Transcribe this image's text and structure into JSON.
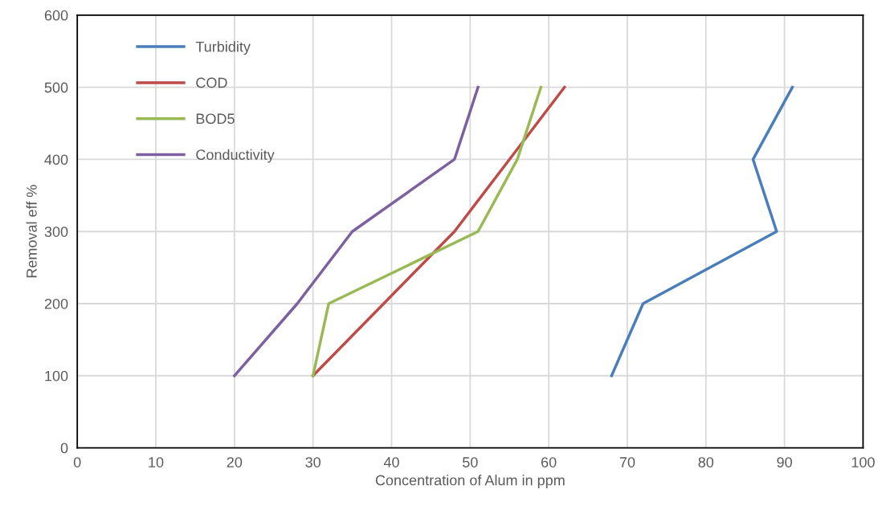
{
  "chart_data": {
    "type": "line",
    "xlabel": "Concentration of Alum in ppm",
    "ylabel": "Removal eff %",
    "xlim": [
      0,
      100
    ],
    "xticks": [
      0,
      10,
      20,
      30,
      40,
      50,
      60,
      70,
      80,
      90,
      100
    ],
    "ylim": [
      0,
      600
    ],
    "yticks": [
      0,
      100,
      200,
      300,
      400,
      500,
      600
    ],
    "grid": true,
    "legend": "top left",
    "marker": "none",
    "line_style": "solid",
    "series": [
      {
        "name": "Turbidity",
        "color": "#4a7ebb",
        "x": [
          68,
          72,
          89,
          86,
          91
        ],
        "values": [
          100,
          200,
          300,
          400,
          500
        ]
      },
      {
        "name": "COD",
        "color": "#be4b48",
        "x": [
          30,
          39,
          48,
          55,
          62
        ],
        "values": [
          100,
          200,
          300,
          400,
          500
        ]
      },
      {
        "name": "BOD5",
        "color": "#98b954",
        "x": [
          30,
          32,
          51,
          56,
          59
        ],
        "values": [
          100,
          200,
          300,
          400,
          500
        ]
      },
      {
        "name": "Conductivity",
        "color": "#7d60a0",
        "x": [
          20,
          28,
          35,
          48,
          51
        ],
        "values": [
          100,
          200,
          300,
          400,
          500
        ]
      }
    ]
  }
}
